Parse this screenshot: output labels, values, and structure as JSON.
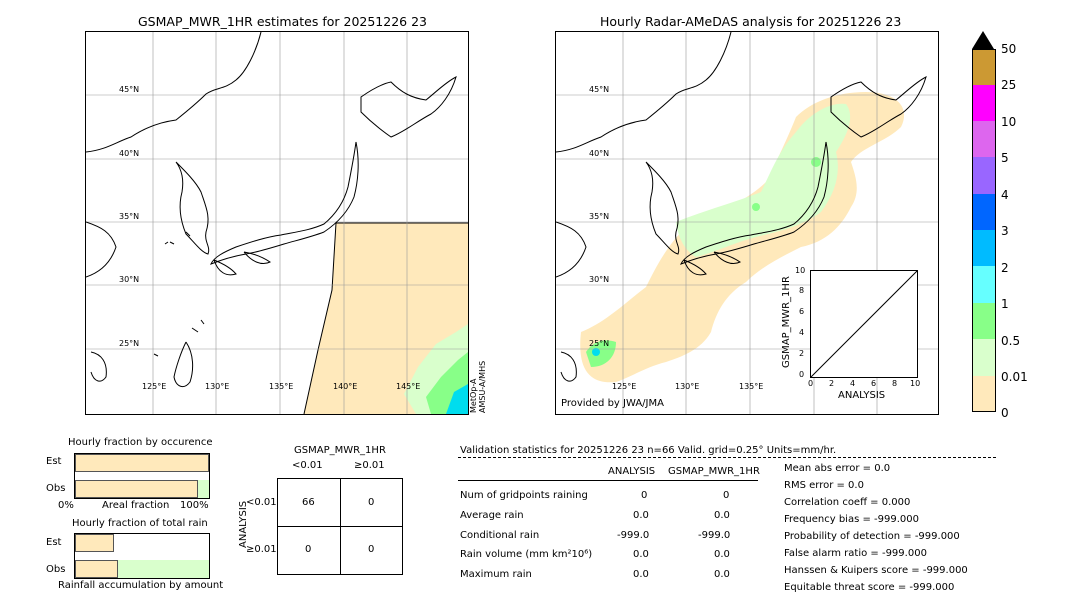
{
  "left_map": {
    "title": "GSMAP_MWR_1HR estimates for 20251226 23",
    "lat_labels": [
      "45°N",
      "40°N",
      "35°N",
      "30°N",
      "25°N"
    ],
    "lon_labels": [
      "125°E",
      "130°E",
      "135°E",
      "140°E",
      "145°E"
    ],
    "side_label_1": "MetOp-A",
    "side_label_2": "AMSU-A/MHS"
  },
  "right_map": {
    "title": "Hourly Radar-AMeDAS analysis for 20251226 23",
    "lat_labels": [
      "45°N",
      "40°N",
      "35°N",
      "30°N",
      "25°N"
    ],
    "lon_labels": [
      "125°E",
      "130°E",
      "135°E"
    ],
    "credit": "Provided by JWA/JMA"
  },
  "inset": {
    "ylabel": "GSMAP_MWR_1HR",
    "xlabel": "ANALYSIS",
    "ticks": [
      "0",
      "2",
      "4",
      "6",
      "8",
      "10"
    ]
  },
  "colorbar": {
    "labels": [
      "50",
      "25",
      "10",
      "5",
      "4",
      "3",
      "2",
      "1",
      "0.5",
      "0.01",
      "0"
    ],
    "colors": [
      "#cc9933",
      "#ff00ff",
      "#dd66ee",
      "#9966ff",
      "#0066ff",
      "#00bbff",
      "#66ffff",
      "#88ff88",
      "#d9ffcc",
      "#ffe9bb"
    ]
  },
  "fraction_occurrence": {
    "title": "Hourly fraction by occurence",
    "row_est": "Est",
    "row_obs": "Obs",
    "axis_left": "0%",
    "axis_mid": "Areal fraction",
    "axis_right": "100%",
    "est_fraction": 1.0,
    "obs_fraction": 0.92
  },
  "fraction_total": {
    "title": "Hourly fraction of total rain",
    "row_est": "Est",
    "row_obs": "Obs",
    "footer": "Rainfall accumulation by amount",
    "est_fraction": 0.29,
    "obs_fraction": 0.32
  },
  "contingency": {
    "title": "GSMAP_MWR_1HR",
    "col1": "<0.01",
    "col2": "≥0.01",
    "row_axis": "ANALYSIS",
    "row1": "<0.01",
    "row2": "≥0.01",
    "cells": [
      "66",
      "0",
      "0",
      "0"
    ]
  },
  "validation": {
    "header": "Validation statistics for 20251226 23  n=66 Valid. grid=0.25° Units=mm/hr.",
    "col_analysis": "ANALYSIS",
    "col_gsmap": "GSMAP_MWR_1HR",
    "rows": [
      {
        "label": "Num of gridpoints raining",
        "a": "0",
        "g": "0"
      },
      {
        "label": "Average rain",
        "a": "0.0",
        "g": "0.0"
      },
      {
        "label": "Conditional rain",
        "a": "-999.0",
        "g": "-999.0"
      },
      {
        "label": "Rain volume (mm km²10⁶)",
        "a": "0.0",
        "g": "0.0"
      },
      {
        "label": "Maximum rain",
        "a": "0.0",
        "g": "0.0"
      }
    ],
    "scores": [
      "Mean abs error =    0.0",
      "RMS error =    0.0",
      "Correlation coeff =  0.000",
      "Frequency bias = -999.000",
      "Probability of detection = -999.000",
      "False alarm ratio = -999.000",
      "Hanssen & Kuipers score = -999.000",
      "Equitable threat score = -999.000"
    ]
  }
}
